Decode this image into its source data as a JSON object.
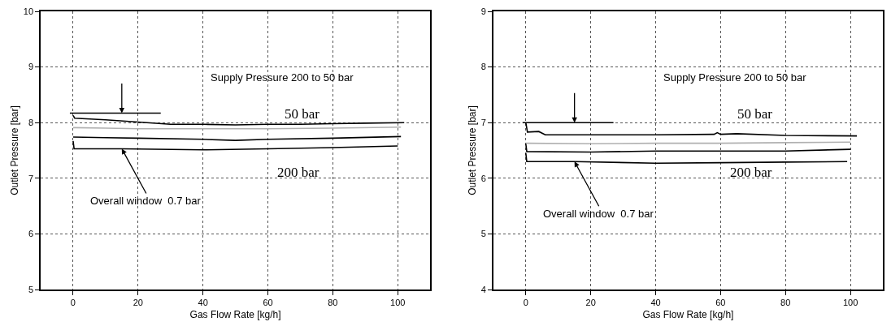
{
  "chart_data": [
    {
      "type": "line",
      "xlabel": "Gas Flow Rate [kg/h]",
      "ylabel": "Outlet Pressure [bar]",
      "xlim": [
        -10,
        110
      ],
      "xticks": [
        0,
        20,
        40,
        60,
        80,
        100
      ],
      "ylim": [
        5,
        10
      ],
      "yticks": [
        5,
        6,
        7,
        8,
        9,
        10
      ],
      "grid": true,
      "marker": "none",
      "line_style": "solid",
      "series": [
        {
          "color": "#000000",
          "x": [
            -1,
            15,
            27
          ],
          "values": [
            8.17,
            8.17,
            8.17
          ]
        },
        {
          "color": "#000000",
          "x": [
            0,
            0.5,
            10,
            20,
            30,
            40,
            50,
            60,
            70,
            80,
            90,
            102
          ],
          "values": [
            8.13,
            8.08,
            8.05,
            8.01,
            7.97,
            7.97,
            7.96,
            7.97,
            7.97,
            7.98,
            7.99,
            8.0
          ]
        },
        {
          "color": "#b0b0b0",
          "x": [
            0,
            10,
            20,
            40,
            60,
            80,
            101
          ],
          "values": [
            7.91,
            7.9,
            7.89,
            7.89,
            7.89,
            7.9,
            7.92
          ]
        },
        {
          "color": "#000000",
          "x": [
            0,
            10,
            20,
            40,
            50,
            60,
            80,
            101
          ],
          "values": [
            7.74,
            7.73,
            7.72,
            7.7,
            7.68,
            7.7,
            7.72,
            7.75
          ]
        },
        {
          "color": "#000000",
          "x": [
            0,
            0.3,
            15,
            40,
            60,
            80,
            100
          ],
          "values": [
            7.67,
            7.53,
            7.53,
            7.51,
            7.53,
            7.55,
            7.58
          ]
        }
      ],
      "annotations": [
        "Supply Pressure 200 to 50 bar",
        "50 bar",
        "200 bar",
        {
          "text": "Overall window  0.7 bar",
          "x": 15,
          "y": 7.53
        }
      ]
    },
    {
      "type": "line",
      "xlabel": "Gas Flow Rate [kg/h]",
      "ylabel": "Outlet Pressure [bar]",
      "xlim": [
        -10,
        110
      ],
      "xticks": [
        0,
        20,
        40,
        60,
        80,
        100
      ],
      "ylim": [
        4,
        9
      ],
      "yticks": [
        4,
        5,
        6,
        7,
        8,
        9
      ],
      "grid": true,
      "marker": "none",
      "line_style": "solid",
      "series": [
        {
          "color": "#000000",
          "x": [
            -1,
            15,
            27
          ],
          "values": [
            7.0,
            7.0,
            7.0
          ]
        },
        {
          "color": "#000000",
          "x": [
            0,
            0.5,
            4,
            6,
            20,
            40,
            58,
            59,
            60,
            65,
            80,
            102
          ],
          "values": [
            7.0,
            6.83,
            6.84,
            6.78,
            6.78,
            6.78,
            6.79,
            6.82,
            6.79,
            6.8,
            6.77,
            6.76
          ]
        },
        {
          "color": "#b0b0b0",
          "x": [
            0,
            20,
            40,
            60,
            80,
            100
          ],
          "values": [
            6.63,
            6.62,
            6.63,
            6.63,
            6.64,
            6.65
          ]
        },
        {
          "color": "#000000",
          "x": [
            0,
            0.3,
            20,
            40,
            60,
            80,
            100
          ],
          "values": [
            6.62,
            6.48,
            6.47,
            6.49,
            6.49,
            6.49,
            6.52
          ]
        },
        {
          "color": "#000000",
          "x": [
            0,
            0.3,
            15,
            40,
            60,
            80,
            99
          ],
          "values": [
            6.45,
            6.3,
            6.3,
            6.27,
            6.28,
            6.29,
            6.3
          ]
        }
      ],
      "annotations": [
        "Supply Pressure 200 to 50 bar",
        "50 bar",
        "200 bar",
        {
          "text": "Overall window  0.7 bar",
          "x": 15,
          "y": 6.3
        }
      ]
    }
  ]
}
